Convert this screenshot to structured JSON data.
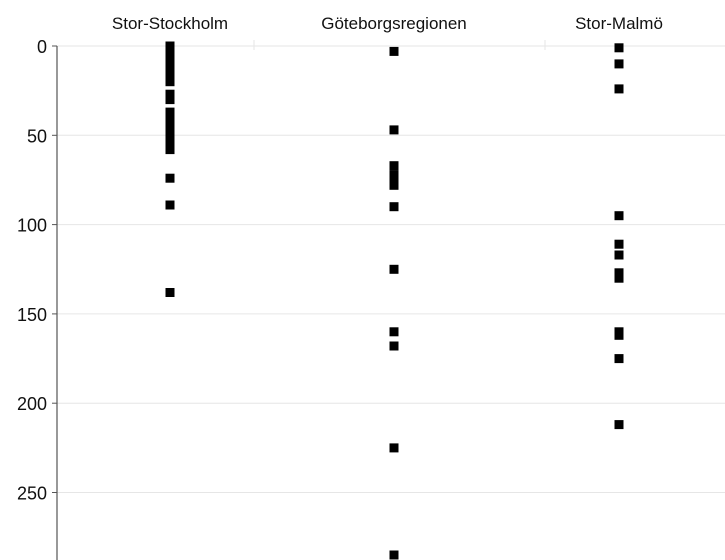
{
  "chart_data": {
    "type": "scatter",
    "categories": [
      "Stor-Stockholm",
      "Göteborgsregionen",
      "Stor-Malmö"
    ],
    "y_axis": {
      "ticks": [
        0,
        50,
        100,
        150,
        200,
        250
      ],
      "range": [
        0,
        285
      ],
      "inverted": true
    },
    "grid": true,
    "series": [
      {
        "category": "Stor-Stockholm",
        "values": [
          0,
          2,
          5,
          8,
          11,
          14,
          17,
          20,
          27,
          30,
          37,
          40,
          43,
          46,
          49,
          52,
          55,
          58,
          74,
          89,
          138
        ]
      },
      {
        "category": "Göteborgsregionen",
        "values": [
          3,
          47,
          67,
          72,
          75,
          78,
          90,
          125,
          160,
          168,
          225,
          285
        ]
      },
      {
        "category": "Stor-Malmö",
        "values": [
          1,
          10,
          24,
          95,
          111,
          117,
          127,
          130,
          160,
          162,
          175,
          212
        ]
      }
    ],
    "colors": {
      "marker": "#000000",
      "grid": "#e6e6e6",
      "axis": "#555555"
    }
  }
}
